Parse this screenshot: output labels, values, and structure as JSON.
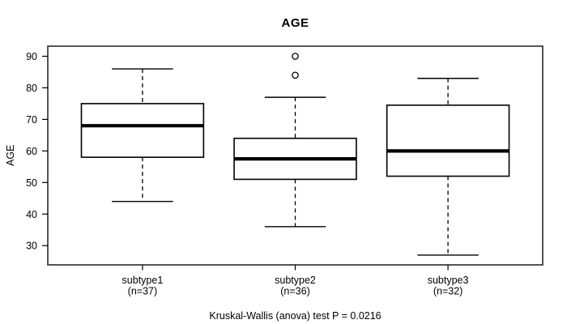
{
  "title": "AGE",
  "caption": "Kruskal-Wallis (anova) test P = 0.0216",
  "colors": {
    "foreground": "#000000",
    "background": "#ffffff",
    "frame": "#2b2b2b"
  },
  "chart_data": {
    "type": "boxplot",
    "title": "AGE",
    "xlabel": "",
    "ylabel": "AGE",
    "caption": "Kruskal-Wallis (anova) test P = 0.0216",
    "grid": false,
    "legend": "none",
    "ylim": [
      23.9,
      93.2
    ],
    "xlim": [
      0.38,
      3.62
    ],
    "yticks": [
      30,
      40,
      50,
      60,
      70,
      80,
      90
    ],
    "box_width": 0.8,
    "cap_width": 0.4,
    "groups": [
      {
        "label": "subtype1",
        "sublabel": "(n=37)",
        "n": 37,
        "position": 1,
        "whisker_low": 44,
        "q1": 58,
        "median": 68,
        "q3": 75,
        "whisker_high": 86,
        "outliers": []
      },
      {
        "label": "subtype2",
        "sublabel": "(n=36)",
        "n": 36,
        "position": 2,
        "whisker_low": 36,
        "q1": 51,
        "median": 57.5,
        "q3": 64,
        "whisker_high": 77,
        "outliers": [
          84,
          90
        ]
      },
      {
        "label": "subtype3",
        "sublabel": "(n=32)",
        "n": 32,
        "position": 3,
        "whisker_low": 27,
        "q1": 52,
        "median": 60,
        "q3": 74.5,
        "whisker_high": 83,
        "outliers": []
      }
    ]
  }
}
